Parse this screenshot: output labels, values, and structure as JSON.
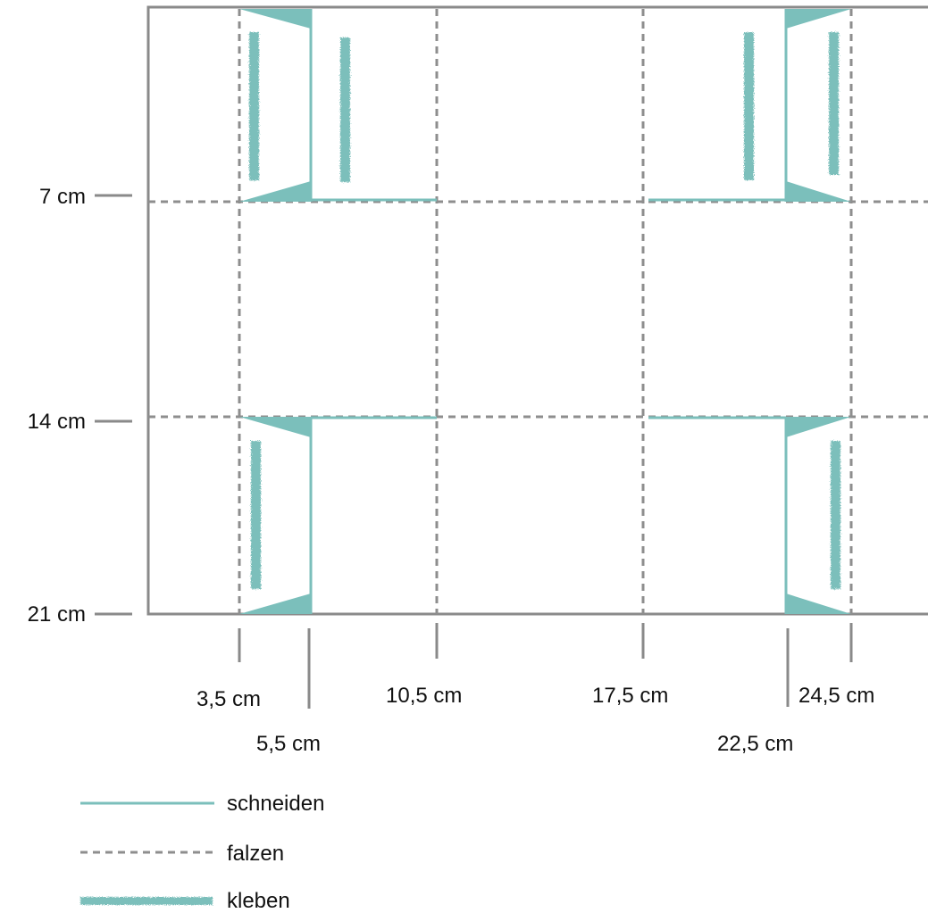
{
  "colors": {
    "cut": "#7bbfbb",
    "fold": "#8e8e8e",
    "glue": "#7bbfbb",
    "frame": "#8a8a8a"
  },
  "y_labels": [
    "7 cm",
    "14 cm",
    "21 cm"
  ],
  "x_labels": {
    "x3_5": "3,5 cm",
    "x5_5": "5,5 cm",
    "x10_5": "10,5 cm",
    "x17_5": "17,5 cm",
    "x22_5": "22,5 cm",
    "x24_5": "24,5 cm"
  },
  "legend": {
    "cut": "schneiden",
    "fold": "falzen",
    "glue": "kleben"
  }
}
